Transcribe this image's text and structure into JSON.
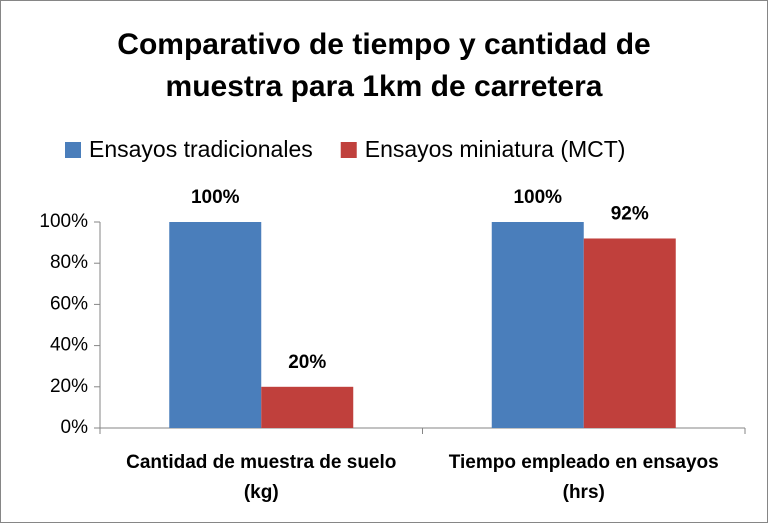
{
  "chart_data": {
    "type": "bar",
    "title": "Comparativo de tiempo y cantidad de muestra para 1km de carretera",
    "categories": [
      "Cantidad de muestra de suelo (kg)",
      "Tiempo empleado en ensayos (hrs)"
    ],
    "series": [
      {
        "name": "Ensayos tradicionales",
        "color": "#4a7ebb",
        "values": [
          100,
          100
        ],
        "value_labels": [
          "100%",
          "100%"
        ]
      },
      {
        "name": "Ensayos miniatura (MCT)",
        "color": "#c0403c",
        "values": [
          20,
          92
        ],
        "value_labels": [
          "20%",
          "92%"
        ]
      }
    ],
    "ylim": [
      0,
      100
    ],
    "yticks": [
      {
        "value": 0,
        "label": "0%"
      },
      {
        "value": 20,
        "label": "20%"
      },
      {
        "value": 40,
        "label": "40%"
      },
      {
        "value": 60,
        "label": "60%"
      },
      {
        "value": 80,
        "label": "80%"
      },
      {
        "value": 100,
        "label": "100%"
      }
    ],
    "legend": "top"
  }
}
